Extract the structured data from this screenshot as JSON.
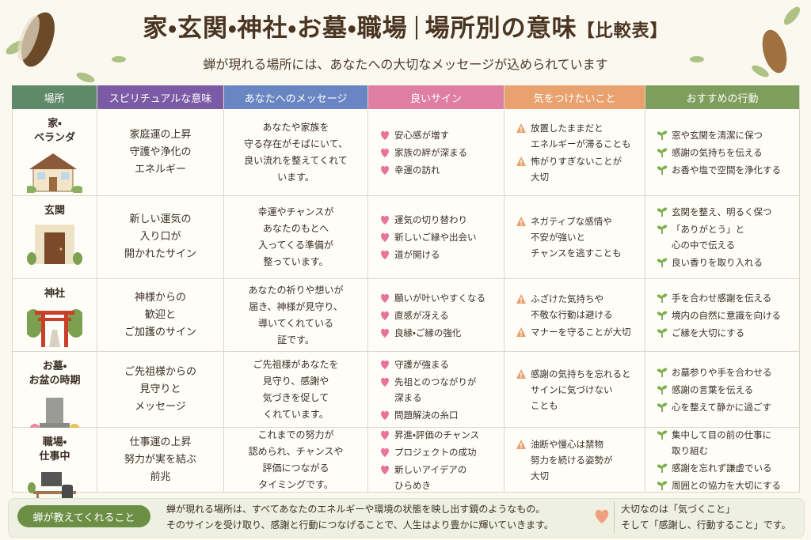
{
  "header": {
    "title": "家・玄関・神社・お墓・職場",
    "title_suffix": "場所別の意味",
    "badge": "【比較表】",
    "subtitle": "蝉が現れる場所には、あなたへの大切なメッセージが込められています"
  },
  "table": {
    "columns": [
      "場所",
      "スピリチュアルな意味",
      "あなたへのメッセージ",
      "良いサイン",
      "気をつけたいこと",
      "おすすめの行動"
    ],
    "rows": [
      {
        "place": [
          "家・",
          "ベランダ"
        ],
        "spiritual": [
          "家庭運の上昇",
          "守護や浄化の",
          "エネルギー"
        ],
        "message": [
          "あなたや家族を",
          "守る存在がそばにいて、",
          "良い流れを整えてくれて",
          "います。"
        ],
        "good": [
          [
            "安心感が増す"
          ],
          [
            "家族の絆が深まる"
          ],
          [
            "幸運の訪れ"
          ]
        ],
        "caution": [
          [
            "放置したままだと",
            "エネルギーが滞ることも"
          ],
          [
            "怖がりすぎないことが",
            "大切"
          ]
        ],
        "action": [
          [
            "窓や玄関を清潔に保つ"
          ],
          [
            "感謝の気持ちを伝える"
          ],
          [
            "お香や塩で空間を浄化する"
          ]
        ]
      },
      {
        "place": [
          "玄関"
        ],
        "spiritual": [
          "新しい運気の",
          "入り口が",
          "開かれたサイン"
        ],
        "message": [
          "幸運やチャンスが",
          "あなたのもとへ",
          "入ってくる準備が",
          "整っています。"
        ],
        "good": [
          [
            "運気の切り替わり"
          ],
          [
            "新しいご縁や出会い"
          ],
          [
            "道が開ける"
          ]
        ],
        "caution": [
          [
            "ネガティブな感情や",
            "不安が強いと",
            "チャンスを逃すことも"
          ]
        ],
        "action": [
          [
            "玄関を整え、明るく保つ"
          ],
          [
            "「ありがとう」と",
            "心の中で伝える"
          ],
          [
            "良い香りを取り入れる"
          ]
        ]
      },
      {
        "place": [
          "神社"
        ],
        "spiritual": [
          "神様からの",
          "歓迎と",
          "ご加護のサイン"
        ],
        "message": [
          "あなたの祈りや想いが",
          "届き、神様が見守り、",
          "導いてくれている",
          "証です。"
        ],
        "good": [
          [
            "願いが叶いやすくなる"
          ],
          [
            "直感が冴える"
          ],
          [
            "良縁・ご縁の強化"
          ]
        ],
        "caution": [
          [
            "ふざけた気持ちや",
            "不敬な行動は避ける"
          ],
          [
            "マナーを守ることが大切"
          ]
        ],
        "action": [
          [
            "手を合わせ感謝を伝える"
          ],
          [
            "境内の自然に意識を向ける"
          ],
          [
            "ご縁を大切にする"
          ]
        ]
      },
      {
        "place": [
          "お墓・",
          "お盆の時期"
        ],
        "spiritual": [
          "ご先祖様からの",
          "見守りと",
          "メッセージ"
        ],
        "message": [
          "ご先祖様があなたを",
          "見守り、感謝や",
          "気づきを促して",
          "くれています。"
        ],
        "good": [
          [
            "守護が強まる"
          ],
          [
            "先祖とのつながりが",
            "深まる"
          ],
          [
            "問題解決の糸口"
          ]
        ],
        "caution": [
          [
            "感謝の気持ちを忘れると",
            "サインに気づけない",
            "ことも"
          ]
        ],
        "action": [
          [
            "お墓参りや手を合わせる"
          ],
          [
            "感謝の言葉を伝える"
          ],
          [
            "心を整えて静かに過ごす"
          ]
        ]
      },
      {
        "place": [
          "職場・",
          "仕事中"
        ],
        "spiritual": [
          "仕事運の上昇",
          "努力が実を結ぶ",
          "前兆"
        ],
        "message": [
          "これまでの努力が",
          "認められ、チャンスや",
          "評価につながる",
          "タイミングです。"
        ],
        "good": [
          [
            "昇進・評価のチャンス"
          ],
          [
            "プロジェクトの成功"
          ],
          [
            "新しいアイデアの",
            "ひらめき"
          ]
        ],
        "caution": [
          [
            "油断や慢心は禁物",
            "努力を続ける姿勢が",
            "大切"
          ]
        ],
        "action": [
          [
            "集中して目の前の仕事に",
            "取り組む"
          ],
          [
            "感謝を忘れず謙虚でいる"
          ],
          [
            "周囲との協力を大切にする"
          ]
        ]
      }
    ]
  },
  "footer": {
    "label": "蝉が教えてくれること",
    "text": [
      "蝉が現れる場所は、すべてあなたのエネルギーや環境の状態を映し出す鏡のようなもの。",
      "そのサインを受け取り、感謝と行動につなげることで、人生はより豊かに輝いていきます。"
    ],
    "note": [
      "大切なのは「気づくこと」",
      "そして「感謝し、行動すること」です。"
    ]
  }
}
